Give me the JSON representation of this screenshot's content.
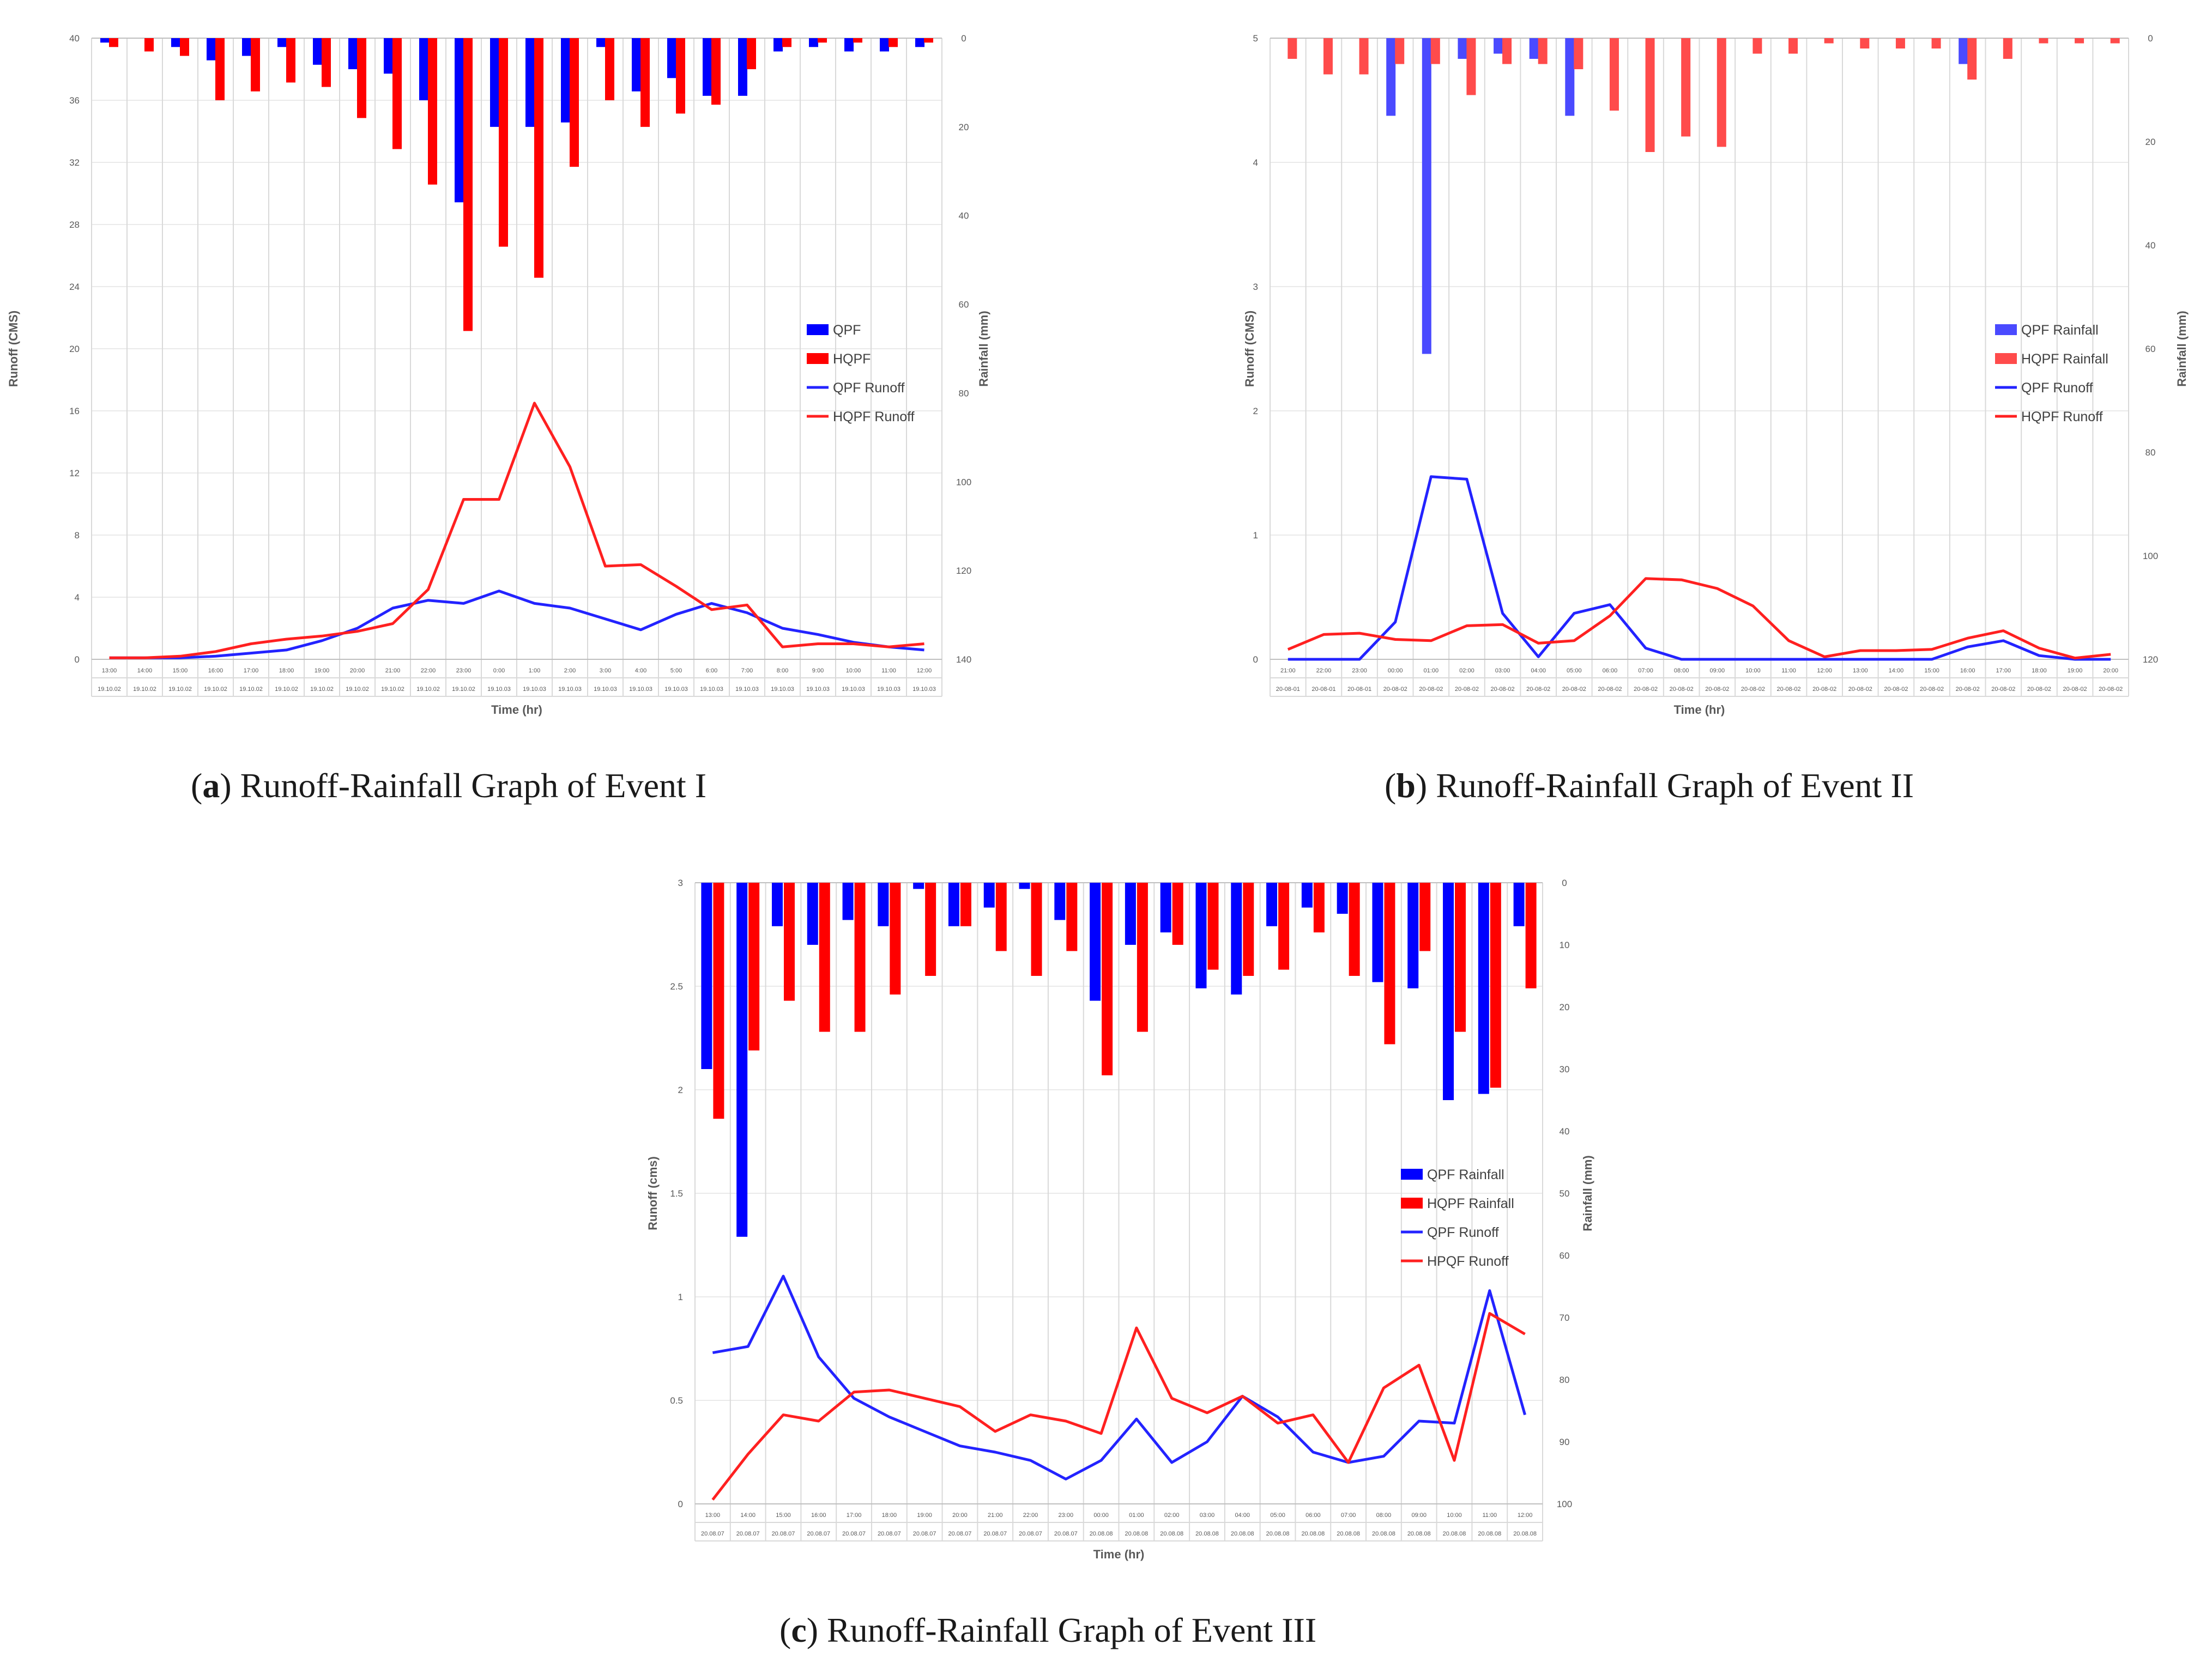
{
  "colors": {
    "qpf_a": "#0000ff",
    "hqpf_a": "#ff0000",
    "qpf_b": "#4a4aff",
    "hqpf_b": "#ff4b4b",
    "qpf_c": "#0000ff",
    "hqpf_c": "#ff0000",
    "qpf_line": "#2323ff",
    "hqpf_line": "#ff2020"
  },
  "chart_data": [
    {
      "id": "a",
      "type": "bar+line",
      "caption_letter": "a",
      "caption_text": "Runoff-Rainfall Graph of Event I",
      "xlabel": "Time (hr)",
      "ylabel_left": "Runoff (CMS)",
      "ylabel_right": "Rainfall (mm)",
      "ylim_left": [
        0,
        40
      ],
      "yticks_left": [
        0,
        4,
        8,
        12,
        16,
        20,
        24,
        28,
        32,
        36,
        40
      ],
      "ylim_right": [
        0,
        140
      ],
      "yticks_right": [
        0,
        20,
        40,
        60,
        80,
        100,
        120,
        140
      ],
      "categories_time": [
        "13:00",
        "14:00",
        "15:00",
        "16:00",
        "17:00",
        "18:00",
        "19:00",
        "20:00",
        "21:00",
        "22:00",
        "23:00",
        "0:00",
        "1:00",
        "2:00",
        "3:00",
        "4:00",
        "5:00",
        "6:00",
        "7:00",
        "8:00",
        "9:00",
        "10:00",
        "11:00",
        "12:00"
      ],
      "categories_date": [
        "19.10.02",
        "19.10.02",
        "19.10.02",
        "19.10.02",
        "19.10.02",
        "19.10.02",
        "19.10.02",
        "19.10.02",
        "19.10.02",
        "19.10.02",
        "19.10.02",
        "19.10.03",
        "19.10.03",
        "19.10.03",
        "19.10.03",
        "19.10.03",
        "19.10.03",
        "19.10.03",
        "19.10.03",
        "19.10.03",
        "19.10.03",
        "19.10.03",
        "19.10.03",
        "19.10.03"
      ],
      "legend": [
        "QPF",
        "HQPF",
        "QPF Runoff",
        "HQPF Runoff"
      ],
      "series": [
        {
          "name": "QPF",
          "kind": "bar",
          "axis": "right",
          "values": [
            1,
            0,
            2,
            5,
            4,
            2,
            6,
            7,
            8,
            14,
            37,
            20,
            20,
            19,
            2,
            12,
            9,
            13,
            13,
            3,
            2,
            3,
            3,
            2
          ]
        },
        {
          "name": "HQPF",
          "kind": "bar",
          "axis": "right",
          "values": [
            2,
            3,
            4,
            14,
            12,
            10,
            11,
            18,
            25,
            33,
            66,
            47,
            54,
            29,
            14,
            20,
            17,
            15,
            7,
            2,
            1,
            1,
            2,
            1
          ]
        },
        {
          "name": "QPF Runoff",
          "kind": "line",
          "axis": "left",
          "values": [
            0.1,
            0.1,
            0.1,
            0.2,
            0.4,
            0.6,
            1.2,
            2.0,
            3.3,
            3.8,
            3.6,
            4.4,
            3.6,
            3.3,
            2.6,
            1.9,
            2.9,
            3.6,
            3.0,
            2.0,
            1.6,
            1.1,
            0.8,
            0.6
          ]
        },
        {
          "name": "HQPF Runoff",
          "kind": "line",
          "axis": "left",
          "values": [
            0.1,
            0.1,
            0.2,
            0.5,
            1.0,
            1.3,
            1.5,
            1.8,
            2.3,
            4.5,
            10.3,
            10.3,
            16.5,
            12.4,
            6.0,
            6.1,
            4.7,
            3.2,
            3.5,
            0.8,
            1.0,
            1.0,
            0.8,
            1.0
          ]
        }
      ]
    },
    {
      "id": "b",
      "type": "bar+line",
      "caption_letter": "b",
      "caption_text": "Runoff-Rainfall Graph of Event II",
      "xlabel": "Time (hr)",
      "ylabel_left": "Runoff (CMS)",
      "ylabel_right": "Rainfall (mm)",
      "ylim_left": [
        0,
        5
      ],
      "yticks_left": [
        0,
        1,
        2,
        3,
        4,
        5
      ],
      "ylim_right": [
        0,
        120
      ],
      "yticks_right": [
        0,
        20,
        40,
        60,
        80,
        100,
        120
      ],
      "categories_time": [
        "21:00",
        "22:00",
        "23:00",
        "00:00",
        "01:00",
        "02:00",
        "03:00",
        "04:00",
        "05:00",
        "06:00",
        "07:00",
        "08:00",
        "09:00",
        "10:00",
        "11:00",
        "12:00",
        "13:00",
        "14:00",
        "15:00",
        "16:00",
        "17:00",
        "18:00",
        "19:00",
        "20:00"
      ],
      "categories_date": [
        "20-08-01",
        "20-08-01",
        "20-08-01",
        "20-08-02",
        "20-08-02",
        "20-08-02",
        "20-08-02",
        "20-08-02",
        "20-08-02",
        "20-08-02",
        "20-08-02",
        "20-08-02",
        "20-08-02",
        "20-08-02",
        "20-08-02",
        "20-08-02",
        "20-08-02",
        "20-08-02",
        "20-08-02",
        "20-08-02",
        "20-08-02",
        "20-08-02",
        "20-08-02",
        "20-08-02"
      ],
      "legend": [
        "QPF Rainfall",
        "HQPF Rainfall",
        "QPF Runoff",
        "HQPF Runoff"
      ],
      "series": [
        {
          "name": "QPF Rainfall",
          "kind": "bar",
          "axis": "right",
          "values": [
            0,
            0,
            0,
            15,
            61,
            4,
            3,
            4,
            15,
            0,
            0,
            0,
            0,
            0,
            0,
            0,
            0,
            0,
            0,
            5,
            0,
            0,
            0,
            0
          ]
        },
        {
          "name": "HQPF Rainfall",
          "kind": "bar",
          "axis": "right",
          "values": [
            4,
            7,
            7,
            5,
            5,
            11,
            5,
            5,
            6,
            14,
            22,
            19,
            21,
            3,
            3,
            1,
            2,
            2,
            2,
            8,
            4,
            1,
            1,
            1
          ]
        },
        {
          "name": "QPF Runoff",
          "kind": "line",
          "axis": "left",
          "values": [
            0,
            0,
            0,
            0.3,
            1.47,
            1.45,
            0.37,
            0.02,
            0.37,
            0.44,
            0.09,
            0,
            0,
            0,
            0,
            0,
            0,
            0,
            0,
            0.1,
            0.15,
            0.03,
            0,
            0
          ]
        },
        {
          "name": "HQPF Runoff",
          "kind": "line",
          "axis": "left",
          "values": [
            0.08,
            0.2,
            0.21,
            0.16,
            0.15,
            0.27,
            0.28,
            0.13,
            0.15,
            0.35,
            0.65,
            0.64,
            0.57,
            0.43,
            0.15,
            0.02,
            0.07,
            0.07,
            0.08,
            0.17,
            0.23,
            0.09,
            0.01,
            0.04
          ]
        }
      ]
    },
    {
      "id": "c",
      "type": "bar+line",
      "caption_letter": "c",
      "caption_text": "Runoff-Rainfall Graph of Event III",
      "xlabel": "Time (hr)",
      "ylabel_left": "Runoff (cms)",
      "ylabel_right": "Rainfall (mm)",
      "ylim_left": [
        0,
        3
      ],
      "yticks_left": [
        0,
        0.5,
        1,
        1.5,
        2,
        2.5,
        3
      ],
      "ylim_right": [
        0,
        100
      ],
      "yticks_right": [
        0,
        10,
        20,
        30,
        40,
        50,
        60,
        70,
        80,
        90,
        100
      ],
      "categories_time": [
        "13:00",
        "14:00",
        "15:00",
        "16:00",
        "17:00",
        "18:00",
        "19:00",
        "20:00",
        "21:00",
        "22:00",
        "23:00",
        "00:00",
        "01:00",
        "02:00",
        "03:00",
        "04:00",
        "05:00",
        "06:00",
        "07:00",
        "08:00",
        "09:00",
        "10:00",
        "11:00",
        "12:00"
      ],
      "categories_date": [
        "20.08.07",
        "20.08.07",
        "20.08.07",
        "20.08.07",
        "20.08.07",
        "20.08.07",
        "20.08.07",
        "20.08.07",
        "20.08.07",
        "20.08.07",
        "20.08.07",
        "20.08.08",
        "20.08.08",
        "20.08.08",
        "20.08.08",
        "20.08.08",
        "20.08.08",
        "20.08.08",
        "20.08.08",
        "20.08.08",
        "20.08.08",
        "20.08.08",
        "20.08.08",
        "20.08.08"
      ],
      "legend": [
        "QPF Rainfall",
        "HQPF Rainfall",
        "QPF Runoff",
        "HPQF Runoff"
      ],
      "series": [
        {
          "name": "QPF Rainfall",
          "kind": "bar",
          "axis": "right",
          "values": [
            30,
            57,
            7,
            10,
            6,
            7,
            1,
            7,
            4,
            1,
            6,
            19,
            10,
            8,
            17,
            18,
            7,
            4,
            5,
            16,
            17,
            35,
            34,
            7
          ]
        },
        {
          "name": "HQPF Rainfall",
          "kind": "bar",
          "axis": "right",
          "values": [
            38,
            27,
            19,
            24,
            24,
            18,
            15,
            7,
            11,
            15,
            11,
            31,
            24,
            10,
            14,
            15,
            14,
            8,
            15,
            26,
            11,
            24,
            33,
            17
          ]
        },
        {
          "name": "QPF Runoff",
          "kind": "line",
          "axis": "left",
          "values": [
            0.73,
            0.76,
            1.1,
            0.71,
            0.51,
            0.42,
            0.35,
            0.28,
            0.25,
            0.21,
            0.12,
            0.21,
            0.41,
            0.2,
            0.3,
            0.52,
            0.42,
            0.25,
            0.2,
            0.23,
            0.4,
            0.39,
            1.03,
            0.43
          ]
        },
        {
          "name": "HPQF Runoff",
          "kind": "line",
          "axis": "left",
          "values": [
            0.02,
            0.24,
            0.43,
            0.4,
            0.54,
            0.55,
            0.51,
            0.47,
            0.35,
            0.43,
            0.4,
            0.34,
            0.85,
            0.51,
            0.44,
            0.52,
            0.39,
            0.43,
            0.2,
            0.56,
            0.67,
            0.21,
            0.92,
            0.82
          ]
        }
      ]
    }
  ]
}
